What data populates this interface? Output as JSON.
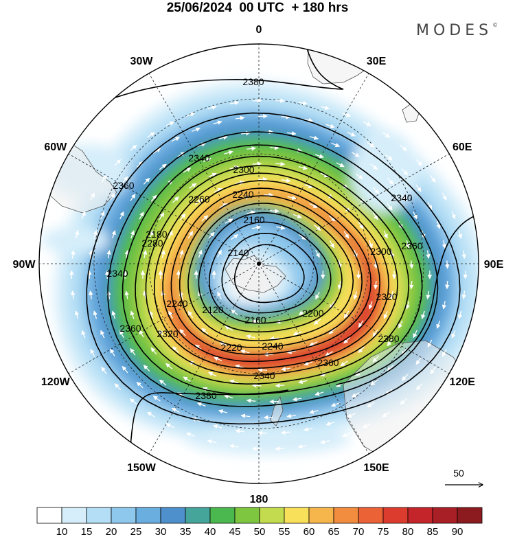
{
  "title": "25/06/2024  00 UTC  + 180 hrs",
  "brand": "MODES",
  "brand_mark": "©",
  "lon_labels": [
    {
      "text": "0",
      "lon": 0
    },
    {
      "text": "30E",
      "lon": 30
    },
    {
      "text": "60E",
      "lon": 60
    },
    {
      "text": "90E",
      "lon": 90
    },
    {
      "text": "120E",
      "lon": 120
    },
    {
      "text": "150E",
      "lon": 150
    },
    {
      "text": "180",
      "lon": 180
    },
    {
      "text": "150W",
      "lon": 210
    },
    {
      "text": "120W",
      "lon": 240
    },
    {
      "text": "90W",
      "lon": 270
    },
    {
      "text": "60W",
      "lon": 300
    },
    {
      "text": "30W",
      "lon": 330
    }
  ],
  "contour_labels": [
    "2380",
    "2380",
    "2380",
    "2360",
    "2360",
    "2360",
    "2360",
    "2340",
    "2340",
    "2340",
    "2340",
    "2320",
    "2320",
    "2300",
    "2300",
    "2280",
    "2260",
    "2240",
    "2240",
    "2240",
    "2220",
    "2200",
    "2180",
    "2160",
    "2160",
    "2140",
    "2120"
  ],
  "vector_key": {
    "value": "50"
  },
  "colorbar": {
    "labels": [
      "10",
      "15",
      "20",
      "25",
      "30",
      "35",
      "40",
      "45",
      "50",
      "55",
      "60",
      "65",
      "70",
      "75",
      "80",
      "85",
      "90"
    ],
    "colors": [
      "#ffffff",
      "#d6eefa",
      "#b3def5",
      "#8ec8ec",
      "#6aaee0",
      "#4e90cc",
      "#45a59a",
      "#4ab84e",
      "#7ec640",
      "#c3dc4f",
      "#f9e05a",
      "#f7b64c",
      "#f28c3e",
      "#eb6236",
      "#dc3c2e",
      "#c3252b",
      "#a81f26",
      "#8c1b20"
    ]
  },
  "chart_data": {
    "type": "heatmap",
    "title": "25/06/2024  00 UTC  + 180 hrs",
    "projection": "polar stereographic, south pole centred, 180 at bottom",
    "filled_field_levels": [
      10,
      15,
      20,
      25,
      30,
      35,
      40,
      45,
      50,
      55,
      60,
      65,
      70,
      75,
      80,
      85,
      90
    ],
    "contour_values": [
      2120,
      2140,
      2160,
      2180,
      2200,
      2220,
      2240,
      2260,
      2280,
      2300,
      2320,
      2340,
      2360,
      2380
    ],
    "vector_reference": 50,
    "jet_max_category": "85"
  }
}
